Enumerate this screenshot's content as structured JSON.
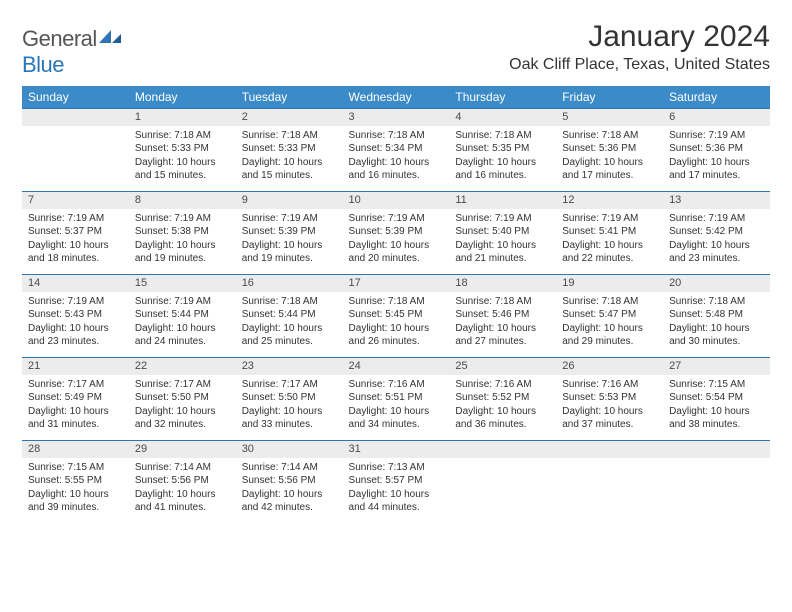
{
  "logo": {
    "textGray": "General",
    "textBlue": "Blue"
  },
  "title": "January 2024",
  "location": "Oak Cliff Place, Texas, United States",
  "colors": {
    "headerBg": "#3b8bc9",
    "headerText": "#ffffff",
    "dayNumBg": "#ececec",
    "dayNumBorderTop": "#2e75b6",
    "bodyText": "#333333",
    "logoGray": "#555555",
    "logoBlue": "#2e75b6",
    "pageBg": "#ffffff"
  },
  "dayHeaders": [
    "Sunday",
    "Monday",
    "Tuesday",
    "Wednesday",
    "Thursday",
    "Friday",
    "Saturday"
  ],
  "weeks": [
    [
      {
        "num": "",
        "sunrise": "",
        "sunset": "",
        "daylight": ""
      },
      {
        "num": "1",
        "sunrise": "Sunrise: 7:18 AM",
        "sunset": "Sunset: 5:33 PM",
        "daylight": "Daylight: 10 hours and 15 minutes."
      },
      {
        "num": "2",
        "sunrise": "Sunrise: 7:18 AM",
        "sunset": "Sunset: 5:33 PM",
        "daylight": "Daylight: 10 hours and 15 minutes."
      },
      {
        "num": "3",
        "sunrise": "Sunrise: 7:18 AM",
        "sunset": "Sunset: 5:34 PM",
        "daylight": "Daylight: 10 hours and 16 minutes."
      },
      {
        "num": "4",
        "sunrise": "Sunrise: 7:18 AM",
        "sunset": "Sunset: 5:35 PM",
        "daylight": "Daylight: 10 hours and 16 minutes."
      },
      {
        "num": "5",
        "sunrise": "Sunrise: 7:18 AM",
        "sunset": "Sunset: 5:36 PM",
        "daylight": "Daylight: 10 hours and 17 minutes."
      },
      {
        "num": "6",
        "sunrise": "Sunrise: 7:19 AM",
        "sunset": "Sunset: 5:36 PM",
        "daylight": "Daylight: 10 hours and 17 minutes."
      }
    ],
    [
      {
        "num": "7",
        "sunrise": "Sunrise: 7:19 AM",
        "sunset": "Sunset: 5:37 PM",
        "daylight": "Daylight: 10 hours and 18 minutes."
      },
      {
        "num": "8",
        "sunrise": "Sunrise: 7:19 AM",
        "sunset": "Sunset: 5:38 PM",
        "daylight": "Daylight: 10 hours and 19 minutes."
      },
      {
        "num": "9",
        "sunrise": "Sunrise: 7:19 AM",
        "sunset": "Sunset: 5:39 PM",
        "daylight": "Daylight: 10 hours and 19 minutes."
      },
      {
        "num": "10",
        "sunrise": "Sunrise: 7:19 AM",
        "sunset": "Sunset: 5:39 PM",
        "daylight": "Daylight: 10 hours and 20 minutes."
      },
      {
        "num": "11",
        "sunrise": "Sunrise: 7:19 AM",
        "sunset": "Sunset: 5:40 PM",
        "daylight": "Daylight: 10 hours and 21 minutes."
      },
      {
        "num": "12",
        "sunrise": "Sunrise: 7:19 AM",
        "sunset": "Sunset: 5:41 PM",
        "daylight": "Daylight: 10 hours and 22 minutes."
      },
      {
        "num": "13",
        "sunrise": "Sunrise: 7:19 AM",
        "sunset": "Sunset: 5:42 PM",
        "daylight": "Daylight: 10 hours and 23 minutes."
      }
    ],
    [
      {
        "num": "14",
        "sunrise": "Sunrise: 7:19 AM",
        "sunset": "Sunset: 5:43 PM",
        "daylight": "Daylight: 10 hours and 23 minutes."
      },
      {
        "num": "15",
        "sunrise": "Sunrise: 7:19 AM",
        "sunset": "Sunset: 5:44 PM",
        "daylight": "Daylight: 10 hours and 24 minutes."
      },
      {
        "num": "16",
        "sunrise": "Sunrise: 7:18 AM",
        "sunset": "Sunset: 5:44 PM",
        "daylight": "Daylight: 10 hours and 25 minutes."
      },
      {
        "num": "17",
        "sunrise": "Sunrise: 7:18 AM",
        "sunset": "Sunset: 5:45 PM",
        "daylight": "Daylight: 10 hours and 26 minutes."
      },
      {
        "num": "18",
        "sunrise": "Sunrise: 7:18 AM",
        "sunset": "Sunset: 5:46 PM",
        "daylight": "Daylight: 10 hours and 27 minutes."
      },
      {
        "num": "19",
        "sunrise": "Sunrise: 7:18 AM",
        "sunset": "Sunset: 5:47 PM",
        "daylight": "Daylight: 10 hours and 29 minutes."
      },
      {
        "num": "20",
        "sunrise": "Sunrise: 7:18 AM",
        "sunset": "Sunset: 5:48 PM",
        "daylight": "Daylight: 10 hours and 30 minutes."
      }
    ],
    [
      {
        "num": "21",
        "sunrise": "Sunrise: 7:17 AM",
        "sunset": "Sunset: 5:49 PM",
        "daylight": "Daylight: 10 hours and 31 minutes."
      },
      {
        "num": "22",
        "sunrise": "Sunrise: 7:17 AM",
        "sunset": "Sunset: 5:50 PM",
        "daylight": "Daylight: 10 hours and 32 minutes."
      },
      {
        "num": "23",
        "sunrise": "Sunrise: 7:17 AM",
        "sunset": "Sunset: 5:50 PM",
        "daylight": "Daylight: 10 hours and 33 minutes."
      },
      {
        "num": "24",
        "sunrise": "Sunrise: 7:16 AM",
        "sunset": "Sunset: 5:51 PM",
        "daylight": "Daylight: 10 hours and 34 minutes."
      },
      {
        "num": "25",
        "sunrise": "Sunrise: 7:16 AM",
        "sunset": "Sunset: 5:52 PM",
        "daylight": "Daylight: 10 hours and 36 minutes."
      },
      {
        "num": "26",
        "sunrise": "Sunrise: 7:16 AM",
        "sunset": "Sunset: 5:53 PM",
        "daylight": "Daylight: 10 hours and 37 minutes."
      },
      {
        "num": "27",
        "sunrise": "Sunrise: 7:15 AM",
        "sunset": "Sunset: 5:54 PM",
        "daylight": "Daylight: 10 hours and 38 minutes."
      }
    ],
    [
      {
        "num": "28",
        "sunrise": "Sunrise: 7:15 AM",
        "sunset": "Sunset: 5:55 PM",
        "daylight": "Daylight: 10 hours and 39 minutes."
      },
      {
        "num": "29",
        "sunrise": "Sunrise: 7:14 AM",
        "sunset": "Sunset: 5:56 PM",
        "daylight": "Daylight: 10 hours and 41 minutes."
      },
      {
        "num": "30",
        "sunrise": "Sunrise: 7:14 AM",
        "sunset": "Sunset: 5:56 PM",
        "daylight": "Daylight: 10 hours and 42 minutes."
      },
      {
        "num": "31",
        "sunrise": "Sunrise: 7:13 AM",
        "sunset": "Sunset: 5:57 PM",
        "daylight": "Daylight: 10 hours and 44 minutes."
      },
      {
        "num": "",
        "sunrise": "",
        "sunset": "",
        "daylight": ""
      },
      {
        "num": "",
        "sunrise": "",
        "sunset": "",
        "daylight": ""
      },
      {
        "num": "",
        "sunrise": "",
        "sunset": "",
        "daylight": ""
      }
    ]
  ]
}
